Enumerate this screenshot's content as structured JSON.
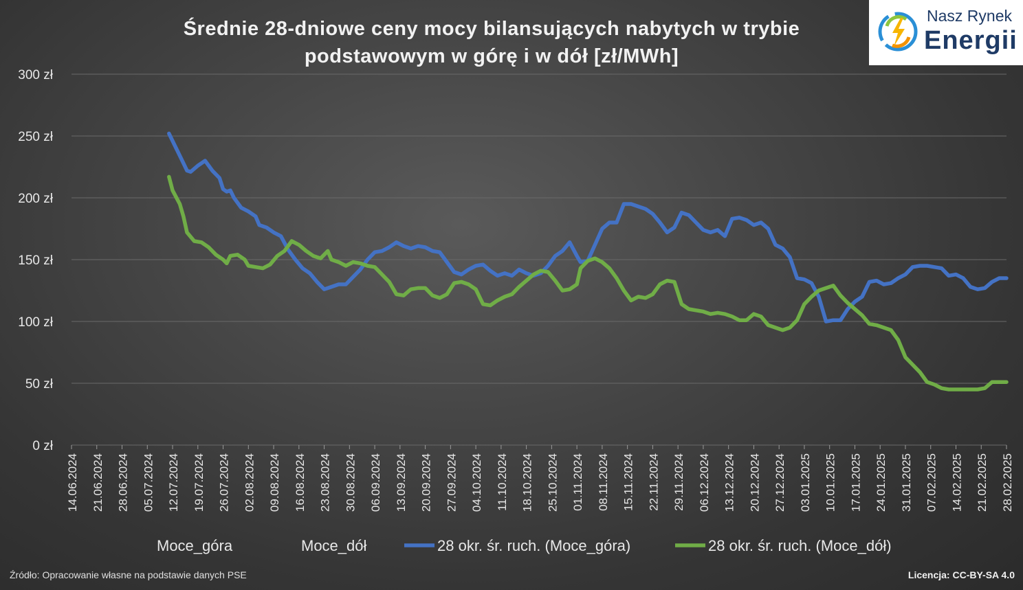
{
  "title_line1": "Średnie 28-dniowe ceny mocy bilansujących nabytych w trybie",
  "title_line2": "podstawowym w górę i w dół [zł/MWh]",
  "logo": {
    "line1": "Nasz Rynek",
    "line2": "Energii"
  },
  "source": "Źródło: Opracowanie własne na podstawie danych PSE",
  "license": "Licencja: CC-BY-SA 4.0",
  "colors": {
    "blue": "#4472c4",
    "green": "#70ad47",
    "grid": "#6a6a6a",
    "text": "#e8e8e8"
  },
  "chart_data": {
    "type": "line",
    "title": "Średnie 28-dniowe ceny mocy bilansujących nabytych w trybie podstawowym w górę i w dół [zł/MWh]",
    "ylim": [
      0,
      300
    ],
    "yticks": [
      0,
      50,
      100,
      150,
      200,
      250,
      300
    ],
    "ytick_labels": [
      "0 zł",
      "50 zł",
      "100 zł",
      "150 zł",
      "200 zł",
      "250 zł",
      "300 zł"
    ],
    "x_start": "2024-06-14",
    "x_end": "2025-02-28",
    "xtick_labels": [
      "14.06.2024",
      "21.06.2024",
      "28.06.2024",
      "05.07.2024",
      "12.07.2024",
      "19.07.2024",
      "26.07.2024",
      "02.08.2024",
      "09.08.2024",
      "16.08.2024",
      "23.08.2024",
      "30.08.2024",
      "06.09.2024",
      "13.09.2024",
      "20.09.2024",
      "27.09.2024",
      "04.10.2024",
      "11.10.2024",
      "18.10.2024",
      "25.10.2024",
      "01.11.2024",
      "08.11.2024",
      "15.11.2024",
      "22.11.2024",
      "29.11.2024",
      "06.12.2024",
      "13.12.2024",
      "20.12.2024",
      "27.12.2024",
      "03.01.2025",
      "10.01.2025",
      "17.01.2025",
      "24.01.2025",
      "31.01.2025",
      "07.02.2025",
      "14.02.2025",
      "21.02.2025",
      "28.02.2025"
    ],
    "grid": true,
    "legend_position": "bottom",
    "legend": [
      "Moce_góra",
      "Moce_dół",
      "28 okr. śr. ruch. (Moce_góra)",
      "28 okr. śr. ruch. (Moce_dół)"
    ],
    "series": [
      {
        "name": "28 okr. śr. ruch. (Moce_góra)",
        "color": "#4472c4",
        "points": [
          [
            "2024-07-11",
            252
          ],
          [
            "2024-07-13",
            240
          ],
          [
            "2024-07-15",
            228
          ],
          [
            "2024-07-16",
            222
          ],
          [
            "2024-07-17",
            221
          ],
          [
            "2024-07-19",
            226
          ],
          [
            "2024-07-21",
            230
          ],
          [
            "2024-07-23",
            222
          ],
          [
            "2024-07-25",
            216
          ],
          [
            "2024-07-26",
            207
          ],
          [
            "2024-07-27",
            205
          ],
          [
            "2024-07-28",
            206
          ],
          [
            "2024-07-29",
            200
          ],
          [
            "2024-07-31",
            192
          ],
          [
            "2024-08-02",
            189
          ],
          [
            "2024-08-04",
            185
          ],
          [
            "2024-08-05",
            178
          ],
          [
            "2024-08-07",
            176
          ],
          [
            "2024-08-09",
            172
          ],
          [
            "2024-08-11",
            169
          ],
          [
            "2024-08-13",
            158
          ],
          [
            "2024-08-15",
            150
          ],
          [
            "2024-08-17",
            143
          ],
          [
            "2024-08-19",
            139
          ],
          [
            "2024-08-21",
            132
          ],
          [
            "2024-08-23",
            126
          ],
          [
            "2024-08-25",
            128
          ],
          [
            "2024-08-27",
            130
          ],
          [
            "2024-08-29",
            130
          ],
          [
            "2024-08-31",
            136
          ],
          [
            "2024-09-02",
            142
          ],
          [
            "2024-09-04",
            150
          ],
          [
            "2024-09-06",
            156
          ],
          [
            "2024-09-08",
            157
          ],
          [
            "2024-09-10",
            160
          ],
          [
            "2024-09-12",
            164
          ],
          [
            "2024-09-14",
            161
          ],
          [
            "2024-09-16",
            159
          ],
          [
            "2024-09-18",
            161
          ],
          [
            "2024-09-20",
            160
          ],
          [
            "2024-09-22",
            157
          ],
          [
            "2024-09-24",
            156
          ],
          [
            "2024-09-26",
            148
          ],
          [
            "2024-09-28",
            140
          ],
          [
            "2024-09-30",
            138
          ],
          [
            "2024-10-02",
            142
          ],
          [
            "2024-10-04",
            145
          ],
          [
            "2024-10-06",
            146
          ],
          [
            "2024-10-08",
            141
          ],
          [
            "2024-10-10",
            137
          ],
          [
            "2024-10-12",
            139
          ],
          [
            "2024-10-14",
            137
          ],
          [
            "2024-10-16",
            142
          ],
          [
            "2024-10-18",
            139
          ],
          [
            "2024-10-20",
            137
          ],
          [
            "2024-10-22",
            139
          ],
          [
            "2024-10-24",
            145
          ],
          [
            "2024-10-26",
            153
          ],
          [
            "2024-10-28",
            157
          ],
          [
            "2024-10-30",
            164
          ],
          [
            "2024-11-01",
            153
          ],
          [
            "2024-11-02",
            148
          ],
          [
            "2024-11-04",
            149
          ],
          [
            "2024-11-06",
            162
          ],
          [
            "2024-11-08",
            175
          ],
          [
            "2024-11-10",
            180
          ],
          [
            "2024-11-12",
            180
          ],
          [
            "2024-11-14",
            195
          ],
          [
            "2024-11-16",
            195
          ],
          [
            "2024-11-18",
            193
          ],
          [
            "2024-11-20",
            191
          ],
          [
            "2024-11-22",
            187
          ],
          [
            "2024-11-24",
            180
          ],
          [
            "2024-11-26",
            172
          ],
          [
            "2024-11-28",
            176
          ],
          [
            "2024-11-30",
            188
          ],
          [
            "2024-12-02",
            186
          ],
          [
            "2024-12-04",
            180
          ],
          [
            "2024-12-06",
            174
          ],
          [
            "2024-12-08",
            172
          ],
          [
            "2024-12-10",
            174
          ],
          [
            "2024-12-12",
            169
          ],
          [
            "2024-12-14",
            183
          ],
          [
            "2024-12-16",
            184
          ],
          [
            "2024-12-18",
            182
          ],
          [
            "2024-12-20",
            178
          ],
          [
            "2024-12-22",
            180
          ],
          [
            "2024-12-24",
            175
          ],
          [
            "2024-12-26",
            162
          ],
          [
            "2024-12-28",
            159
          ],
          [
            "2024-12-30",
            152
          ],
          [
            "2025-01-01",
            135
          ],
          [
            "2025-01-03",
            134
          ],
          [
            "2025-01-05",
            131
          ],
          [
            "2025-01-07",
            120
          ],
          [
            "2025-01-09",
            100
          ],
          [
            "2025-01-11",
            101
          ],
          [
            "2025-01-13",
            101
          ],
          [
            "2025-01-15",
            110
          ],
          [
            "2025-01-17",
            116
          ],
          [
            "2025-01-19",
            120
          ],
          [
            "2025-01-21",
            132
          ],
          [
            "2025-01-23",
            133
          ],
          [
            "2025-01-25",
            130
          ],
          [
            "2025-01-27",
            131
          ],
          [
            "2025-01-29",
            135
          ],
          [
            "2025-01-31",
            138
          ],
          [
            "2025-02-02",
            144
          ],
          [
            "2025-02-04",
            145
          ],
          [
            "2025-02-06",
            145
          ],
          [
            "2025-02-08",
            144
          ],
          [
            "2025-02-10",
            143
          ],
          [
            "2025-02-12",
            137
          ],
          [
            "2025-02-14",
            138
          ],
          [
            "2025-02-16",
            135
          ],
          [
            "2025-02-18",
            128
          ],
          [
            "2025-02-20",
            126
          ],
          [
            "2025-02-22",
            127
          ],
          [
            "2025-02-24",
            132
          ],
          [
            "2025-02-26",
            135
          ],
          [
            "2025-02-28",
            135
          ]
        ]
      },
      {
        "name": "28 okr. śr. ruch. (Moce_dół)",
        "color": "#70ad47",
        "points": [
          [
            "2024-07-11",
            217
          ],
          [
            "2024-07-12",
            206
          ],
          [
            "2024-07-14",
            195
          ],
          [
            "2024-07-15",
            185
          ],
          [
            "2024-07-16",
            172
          ],
          [
            "2024-07-18",
            165
          ],
          [
            "2024-07-20",
            164
          ],
          [
            "2024-07-22",
            160
          ],
          [
            "2024-07-24",
            154
          ],
          [
            "2024-07-26",
            150
          ],
          [
            "2024-07-27",
            147
          ],
          [
            "2024-07-28",
            153
          ],
          [
            "2024-07-30",
            154
          ],
          [
            "2024-08-01",
            150
          ],
          [
            "2024-08-02",
            145
          ],
          [
            "2024-08-04",
            144
          ],
          [
            "2024-08-06",
            143
          ],
          [
            "2024-08-08",
            146
          ],
          [
            "2024-08-10",
            153
          ],
          [
            "2024-08-12",
            157
          ],
          [
            "2024-08-14",
            165
          ],
          [
            "2024-08-16",
            162
          ],
          [
            "2024-08-18",
            157
          ],
          [
            "2024-08-20",
            153
          ],
          [
            "2024-08-22",
            151
          ],
          [
            "2024-08-24",
            157
          ],
          [
            "2024-08-25",
            150
          ],
          [
            "2024-08-27",
            148
          ],
          [
            "2024-08-29",
            145
          ],
          [
            "2024-08-31",
            148
          ],
          [
            "2024-09-02",
            147
          ],
          [
            "2024-09-04",
            145
          ],
          [
            "2024-09-06",
            144
          ],
          [
            "2024-09-08",
            138
          ],
          [
            "2024-09-10",
            132
          ],
          [
            "2024-09-12",
            122
          ],
          [
            "2024-09-14",
            121
          ],
          [
            "2024-09-16",
            126
          ],
          [
            "2024-09-18",
            127
          ],
          [
            "2024-09-20",
            127
          ],
          [
            "2024-09-22",
            121
          ],
          [
            "2024-09-24",
            119
          ],
          [
            "2024-09-26",
            122
          ],
          [
            "2024-09-28",
            131
          ],
          [
            "2024-09-30",
            132
          ],
          [
            "2024-10-02",
            130
          ],
          [
            "2024-10-04",
            126
          ],
          [
            "2024-10-06",
            114
          ],
          [
            "2024-10-08",
            113
          ],
          [
            "2024-10-10",
            117
          ],
          [
            "2024-10-12",
            120
          ],
          [
            "2024-10-14",
            122
          ],
          [
            "2024-10-16",
            128
          ],
          [
            "2024-10-18",
            133
          ],
          [
            "2024-10-20",
            138
          ],
          [
            "2024-10-22",
            141
          ],
          [
            "2024-10-24",
            140
          ],
          [
            "2024-10-26",
            133
          ],
          [
            "2024-10-28",
            125
          ],
          [
            "2024-10-30",
            126
          ],
          [
            "2024-11-01",
            130
          ],
          [
            "2024-11-02",
            143
          ],
          [
            "2024-11-04",
            149
          ],
          [
            "2024-11-06",
            151
          ],
          [
            "2024-11-08",
            148
          ],
          [
            "2024-11-10",
            143
          ],
          [
            "2024-11-12",
            135
          ],
          [
            "2024-11-14",
            125
          ],
          [
            "2024-11-16",
            117
          ],
          [
            "2024-11-18",
            120
          ],
          [
            "2024-11-20",
            119
          ],
          [
            "2024-11-22",
            122
          ],
          [
            "2024-11-24",
            130
          ],
          [
            "2024-11-26",
            133
          ],
          [
            "2024-11-28",
            132
          ],
          [
            "2024-11-30",
            114
          ],
          [
            "2024-12-02",
            110
          ],
          [
            "2024-12-04",
            109
          ],
          [
            "2024-12-06",
            108
          ],
          [
            "2024-12-08",
            106
          ],
          [
            "2024-12-10",
            107
          ],
          [
            "2024-12-12",
            106
          ],
          [
            "2024-12-14",
            104
          ],
          [
            "2024-12-16",
            101
          ],
          [
            "2024-12-18",
            101
          ],
          [
            "2024-12-20",
            106
          ],
          [
            "2024-12-22",
            104
          ],
          [
            "2024-12-24",
            97
          ],
          [
            "2024-12-26",
            95
          ],
          [
            "2024-12-28",
            93
          ],
          [
            "2024-12-30",
            95
          ],
          [
            "2025-01-01",
            101
          ],
          [
            "2025-01-03",
            114
          ],
          [
            "2025-01-05",
            120
          ],
          [
            "2025-01-07",
            125
          ],
          [
            "2025-01-09",
            127
          ],
          [
            "2025-01-11",
            129
          ],
          [
            "2025-01-13",
            121
          ],
          [
            "2025-01-15",
            115
          ],
          [
            "2025-01-17",
            110
          ],
          [
            "2025-01-19",
            105
          ],
          [
            "2025-01-21",
            98
          ],
          [
            "2025-01-23",
            97
          ],
          [
            "2025-01-25",
            95
          ],
          [
            "2025-01-27",
            93
          ],
          [
            "2025-01-29",
            85
          ],
          [
            "2025-01-31",
            71
          ],
          [
            "2025-02-02",
            65
          ],
          [
            "2025-02-04",
            59
          ],
          [
            "2025-02-06",
            51
          ],
          [
            "2025-02-08",
            49
          ],
          [
            "2025-02-10",
            46
          ],
          [
            "2025-02-12",
            45
          ],
          [
            "2025-02-14",
            45
          ],
          [
            "2025-02-16",
            45
          ],
          [
            "2025-02-18",
            45
          ],
          [
            "2025-02-20",
            45
          ],
          [
            "2025-02-22",
            46
          ],
          [
            "2025-02-24",
            51
          ],
          [
            "2025-02-26",
            51
          ],
          [
            "2025-02-28",
            51
          ]
        ]
      }
    ]
  }
}
